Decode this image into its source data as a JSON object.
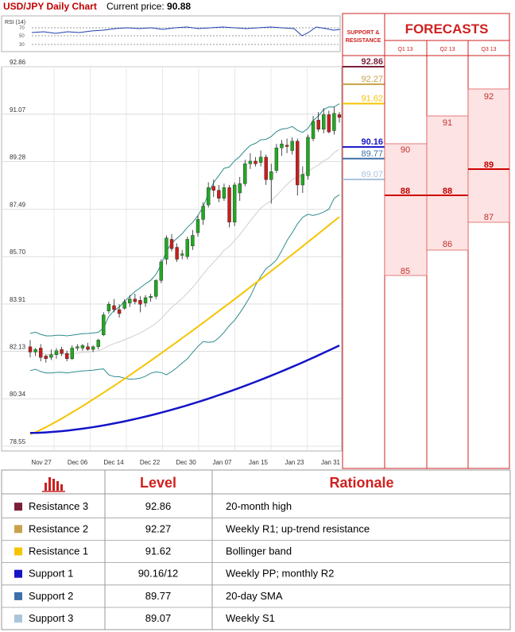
{
  "header": {
    "title": "USD/JPY Daily Chart",
    "price_label": "Current price:",
    "price_value": "90.88"
  },
  "rsi": {
    "label": "RSI (14)",
    "ticks": [
      "70",
      "50",
      "30"
    ]
  },
  "sr_header": {
    "line1": "SUPPORT &",
    "line2": "RESISTANCE"
  },
  "forecast_header": {
    "title": "FORECASTS",
    "quarters": [
      "Q1 13",
      "Q2 13",
      "Q3 13"
    ]
  },
  "chart_data": {
    "type": "candlestick",
    "title": "USD/JPY Daily Chart",
    "current_price": 90.88,
    "ylim": [
      78.55,
      92.86
    ],
    "yticks": [
      "92.86",
      "91.07",
      "89.28",
      "87.49",
      "85.70",
      "83.91",
      "82.13",
      "80.34",
      "78.55"
    ],
    "xticks": [
      "Nov 27",
      "Dec 06",
      "Dec 14",
      "Dec 22",
      "Dec 30",
      "Jan 07",
      "Jan 15",
      "Jan 23",
      "Jan 31"
    ],
    "candles": [
      [
        82.3,
        82.55,
        81.9,
        82.1
      ],
      [
        82.1,
        82.25,
        81.95,
        82.2
      ],
      [
        82.25,
        82.4,
        81.75,
        81.9
      ],
      [
        81.95,
        82.0,
        81.7,
        81.85
      ],
      [
        81.9,
        82.2,
        81.8,
        82.0
      ],
      [
        82.0,
        82.25,
        81.85,
        82.15
      ],
      [
        82.2,
        82.3,
        81.95,
        82.05
      ],
      [
        82.05,
        82.15,
        81.75,
        81.85
      ],
      [
        81.85,
        82.35,
        81.8,
        82.25
      ],
      [
        82.25,
        82.4,
        82.15,
        82.3
      ],
      [
        82.25,
        82.4,
        82.15,
        82.35
      ],
      [
        82.3,
        82.45,
        82.15,
        82.2
      ],
      [
        82.2,
        82.35,
        82.1,
        82.3
      ],
      [
        82.3,
        82.6,
        82.2,
        82.55
      ],
      [
        82.75,
        83.6,
        82.7,
        83.5
      ],
      [
        83.65,
        84.0,
        83.55,
        83.9
      ],
      [
        83.85,
        84.1,
        83.6,
        83.7
      ],
      [
        83.7,
        83.9,
        83.4,
        83.55
      ],
      [
        83.75,
        84.1,
        83.7,
        84.0
      ],
      [
        83.95,
        84.25,
        83.8,
        84.1
      ],
      [
        84.1,
        84.3,
        83.9,
        84.0
      ],
      [
        84.05,
        84.2,
        83.6,
        83.9
      ],
      [
        83.95,
        84.25,
        83.8,
        84.15
      ],
      [
        84.15,
        84.3,
        84.0,
        84.2
      ],
      [
        84.2,
        84.85,
        84.1,
        84.8
      ],
      [
        84.8,
        85.6,
        84.7,
        85.5
      ],
      [
        85.6,
        86.5,
        85.4,
        86.4
      ],
      [
        86.35,
        86.55,
        85.9,
        86.0
      ],
      [
        86.05,
        86.2,
        85.5,
        85.6
      ],
      [
        85.75,
        85.95,
        85.6,
        85.8
      ],
      [
        85.7,
        86.45,
        85.6,
        86.35
      ],
      [
        86.1,
        86.7,
        85.95,
        86.5
      ],
      [
        86.6,
        87.25,
        86.45,
        87.1
      ],
      [
        87.1,
        87.75,
        86.9,
        87.6
      ],
      [
        87.65,
        88.5,
        87.55,
        88.3
      ],
      [
        88.35,
        88.6,
        87.95,
        88.2
      ],
      [
        88.2,
        88.4,
        87.75,
        87.9
      ],
      [
        87.9,
        88.45,
        87.8,
        88.3
      ],
      [
        88.3,
        88.4,
        86.8,
        87.0
      ],
      [
        87.0,
        88.5,
        86.85,
        88.4
      ],
      [
        88.1,
        88.7,
        87.8,
        88.45
      ],
      [
        88.45,
        89.35,
        88.35,
        89.2
      ],
      [
        89.2,
        89.6,
        89.0,
        89.3
      ],
      [
        89.3,
        89.45,
        89.1,
        89.2
      ],
      [
        89.25,
        89.7,
        89.1,
        89.45
      ],
      [
        89.45,
        89.55,
        88.4,
        88.6
      ],
      [
        88.6,
        89.2,
        87.7,
        88.9
      ],
      [
        88.95,
        89.95,
        88.85,
        89.8
      ],
      [
        89.8,
        90.1,
        89.5,
        89.95
      ],
      [
        89.9,
        90.15,
        89.6,
        89.85
      ],
      [
        89.7,
        90.2,
        89.55,
        90.05
      ],
      [
        90.05,
        90.15,
        88.0,
        88.4
      ],
      [
        88.4,
        89.1,
        88.1,
        88.8
      ],
      [
        88.75,
        90.3,
        88.6,
        90.2
      ],
      [
        90.15,
        91.0,
        90.05,
        90.8
      ],
      [
        90.85,
        91.15,
        90.4,
        90.5
      ],
      [
        90.5,
        91.3,
        90.35,
        91.05
      ],
      [
        91.05,
        91.2,
        90.35,
        90.4
      ],
      [
        90.45,
        91.35,
        90.3,
        91.1
      ],
      [
        91.05,
        91.15,
        90.75,
        90.95
      ]
    ],
    "ma_yellow_range": [
      79.0,
      87.2
    ],
    "ma_blue_range": [
      79.05,
      82.35
    ],
    "levels": [
      {
        "name": "Resistance 3",
        "value": "92.86",
        "color": "#7b1f3a"
      },
      {
        "name": "Resistance 2",
        "value": "92.27",
        "color": "#c8a24a"
      },
      {
        "name": "Resistance 1",
        "value": "91.62",
        "color": "#f5c400"
      },
      {
        "name": "Support 1",
        "value": "90.16",
        "color": "#1414c8"
      },
      {
        "name": "Support 2",
        "value": "89.77",
        "color": "#3f6fa8"
      },
      {
        "name": "Support 3",
        "value": "89.07",
        "color": "#a9c4dd"
      }
    ]
  },
  "forecasts": {
    "columns": [
      {
        "quarter": "Q1 13",
        "labels": [
          "90",
          "88",
          "85"
        ]
      },
      {
        "quarter": "Q2 13",
        "labels": [
          "91",
          "88",
          "86"
        ]
      },
      {
        "quarter": "Q3 13",
        "labels": [
          "92",
          "89",
          "87"
        ]
      }
    ]
  },
  "table": {
    "col_level": "Level",
    "col_rationale": "Rationale",
    "rows": [
      {
        "name": "Resistance 3",
        "level": "92.86",
        "rationale": "20-month high",
        "color": "#7b1f3a"
      },
      {
        "name": "Resistance 2",
        "level": "92.27",
        "rationale": "Weekly R1; up-trend resistance",
        "color": "#c8a24a"
      },
      {
        "name": "Resistance 1",
        "level": "91.62",
        "rationale": "Bollinger band",
        "color": "#f5c400"
      },
      {
        "name": "Support 1",
        "level": "90.16/12",
        "rationale": "Weekly PP; monthly R2",
        "color": "#1414c8"
      },
      {
        "name": "Support 2",
        "level": "89.77",
        "rationale": "20-day SMA",
        "color": "#3f6fa8"
      },
      {
        "name": "Support 3",
        "level": "89.07",
        "rationale": "Weekly S1",
        "color": "#a9c4dd"
      }
    ]
  }
}
